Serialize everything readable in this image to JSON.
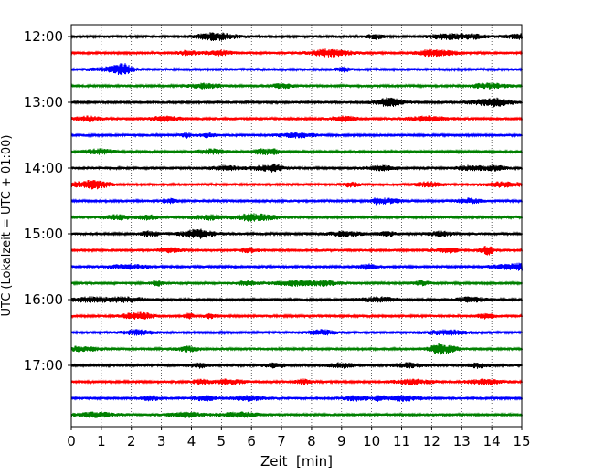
{
  "chart_data": {
    "type": "line",
    "xlabel": "Zeit  [min]",
    "ylabel": "UTC (Lokalzeit = UTC + 01:00)",
    "xlim": [
      0,
      15
    ],
    "x_ticks": [
      0,
      1,
      2,
      3,
      4,
      5,
      6,
      7,
      8,
      9,
      10,
      11,
      12,
      13,
      14,
      15
    ],
    "y_ticks": [
      "12:00",
      "13:00",
      "14:00",
      "15:00",
      "16:00",
      "17:00"
    ],
    "trace_interval_minutes": 15,
    "first_trace": "12:00",
    "last_trace": "17:45",
    "grid": "vertical dotted at each minute",
    "colors": [
      "#000000",
      "#ff0000",
      "#0000ff",
      "#008000"
    ],
    "traces": [
      {
        "start": "12:00",
        "color": "#000000"
      },
      {
        "start": "12:15",
        "color": "#ff0000"
      },
      {
        "start": "12:30",
        "color": "#0000ff"
      },
      {
        "start": "12:45",
        "color": "#008000"
      },
      {
        "start": "13:00",
        "color": "#000000"
      },
      {
        "start": "13:15",
        "color": "#ff0000"
      },
      {
        "start": "13:30",
        "color": "#0000ff"
      },
      {
        "start": "13:45",
        "color": "#008000"
      },
      {
        "start": "14:00",
        "color": "#000000"
      },
      {
        "start": "14:15",
        "color": "#ff0000"
      },
      {
        "start": "14:30",
        "color": "#0000ff"
      },
      {
        "start": "14:45",
        "color": "#008000"
      },
      {
        "start": "15:00",
        "color": "#000000"
      },
      {
        "start": "15:15",
        "color": "#ff0000"
      },
      {
        "start": "15:30",
        "color": "#0000ff"
      },
      {
        "start": "15:45",
        "color": "#008000"
      },
      {
        "start": "16:00",
        "color": "#000000"
      },
      {
        "start": "16:15",
        "color": "#ff0000"
      },
      {
        "start": "16:30",
        "color": "#0000ff"
      },
      {
        "start": "16:45",
        "color": "#008000"
      },
      {
        "start": "17:00",
        "color": "#000000"
      },
      {
        "start": "17:15",
        "color": "#ff0000"
      },
      {
        "start": "17:30",
        "color": "#0000ff"
      },
      {
        "start": "17:45",
        "color": "#008000"
      }
    ]
  }
}
